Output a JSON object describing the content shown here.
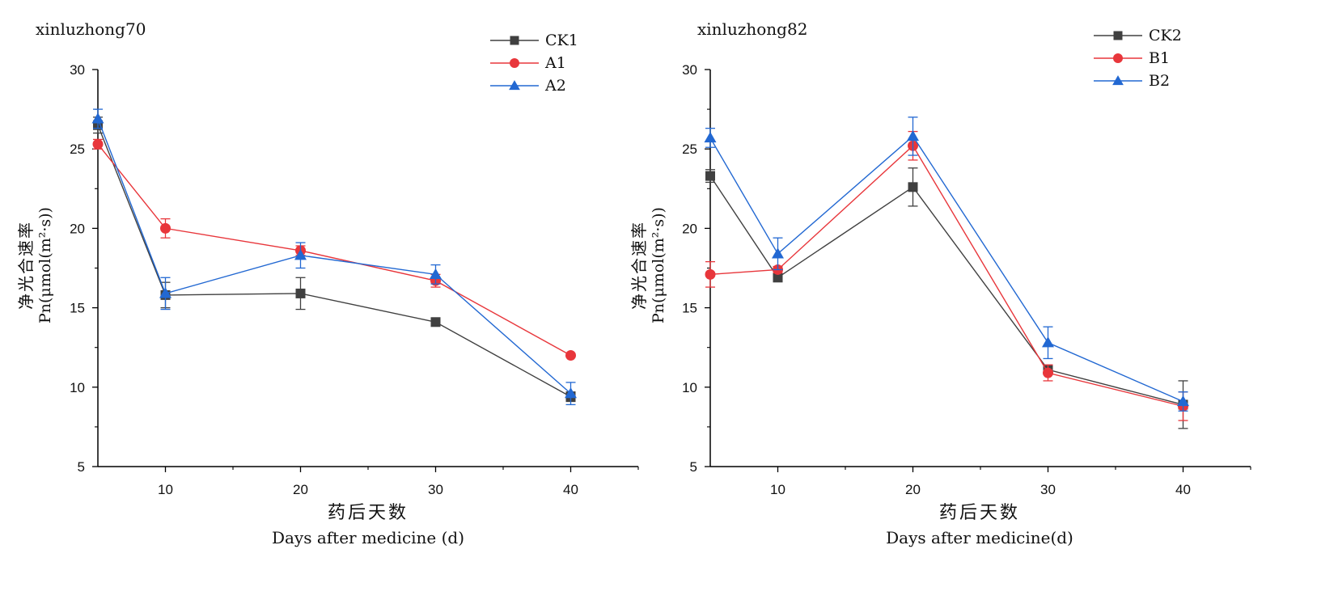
{
  "chart_data": [
    {
      "type": "line",
      "title": "xinluzhong70",
      "ylabel_cn": "净光合速率",
      "ylabel": "Pn(μmol(m²·s))",
      "xlabel_cn": "药后天数",
      "xlabel": "Days after medicine (d)",
      "xlim": [
        5,
        45
      ],
      "ylim": [
        5,
        30
      ],
      "xticks": [
        10,
        20,
        30,
        40
      ],
      "yticks": [
        5,
        10,
        15,
        20,
        25,
        30
      ],
      "grid": false,
      "legend_position": "top-right",
      "x": [
        5,
        10,
        20,
        30,
        40
      ],
      "series": [
        {
          "name": "CK1",
          "marker": "square",
          "color": "#404040",
          "values": [
            26.5,
            15.8,
            15.9,
            14.1,
            9.4
          ],
          "errors": [
            0.5,
            0.8,
            1.0,
            0.1,
            0.3
          ]
        },
        {
          "name": "A1",
          "marker": "circle",
          "color": "#e8363b",
          "values": [
            25.3,
            20.0,
            18.6,
            16.7,
            12.0
          ],
          "errors": [
            0.3,
            0.6,
            0.3,
            0.4,
            0.1
          ]
        },
        {
          "name": "A2",
          "marker": "triangle",
          "color": "#2268d2",
          "values": [
            26.9,
            15.9,
            18.3,
            17.1,
            9.6
          ],
          "errors": [
            0.6,
            1.0,
            0.8,
            0.6,
            0.7
          ]
        }
      ]
    },
    {
      "type": "line",
      "title": "xinluzhong82",
      "ylabel_cn": "净光合速率",
      "ylabel": "Pn(μmol(m²·s))",
      "xlabel_cn": "药后天数",
      "xlabel": "Days after medicine(d)",
      "xlim": [
        5,
        45
      ],
      "ylim": [
        5,
        30
      ],
      "xticks": [
        10,
        20,
        30,
        40
      ],
      "yticks": [
        5,
        10,
        15,
        20,
        25,
        30
      ],
      "grid": false,
      "legend_position": "top-right",
      "x": [
        5,
        10,
        20,
        30,
        40
      ],
      "series": [
        {
          "name": "CK2",
          "marker": "square",
          "color": "#404040",
          "values": [
            23.3,
            16.9,
            22.6,
            11.1,
            8.9
          ],
          "errors": [
            0.4,
            0.2,
            1.2,
            0.3,
            1.5
          ]
        },
        {
          "name": "B1",
          "marker": "circle",
          "color": "#e8363b",
          "values": [
            17.1,
            17.4,
            25.2,
            10.9,
            8.8
          ],
          "errors": [
            0.8,
            0.2,
            0.9,
            0.5,
            0.9
          ]
        },
        {
          "name": "B2",
          "marker": "triangle",
          "color": "#2268d2",
          "values": [
            25.7,
            18.4,
            25.8,
            12.8,
            9.1
          ],
          "errors": [
            0.6,
            1.0,
            1.2,
            1.0,
            0.6
          ]
        }
      ]
    }
  ]
}
